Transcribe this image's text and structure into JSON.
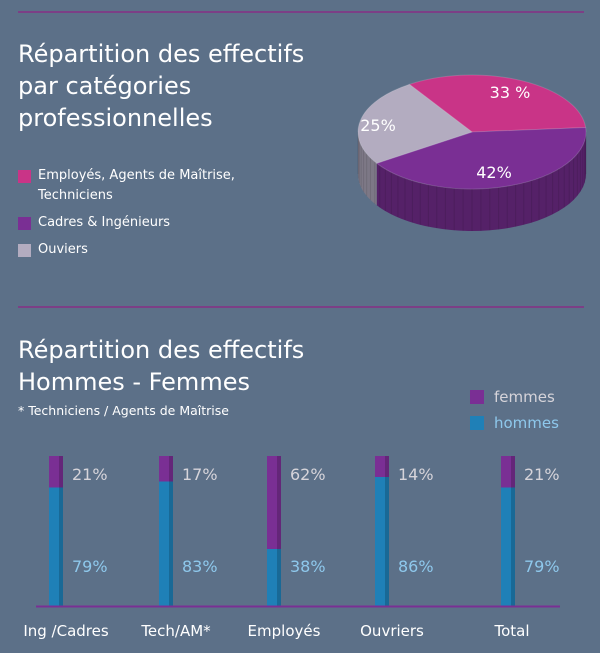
{
  "colors": {
    "background": "#5c7088",
    "rule": "#7c3f86",
    "pink": "#c93487",
    "purple": "#7a2f94",
    "grey": "#b3acc0",
    "femmes": "#7a2f94",
    "hommes": "#1f80b7",
    "hommes_label": "#8ec8ec",
    "femmes_label": "#d6d4da"
  },
  "section1": {
    "title_lines": [
      "Répartition des effectifs",
      "par catégories",
      "professionnelles"
    ],
    "legend": [
      {
        "label_lines": [
          "Employés, Agents de Maîtrise,",
          "Techniciens"
        ],
        "color": "#c93487"
      },
      {
        "label_lines": [
          "Cadres & Ingénieurs"
        ],
        "color": "#7a2f94"
      },
      {
        "label_lines": [
          "Ouviers"
        ],
        "color": "#b3acc0"
      }
    ]
  },
  "section2": {
    "title_lines": [
      "Répartition des effectifs",
      "Hommes - Femmes"
    ],
    "note": "* Techniciens / Agents de Maîtrise",
    "legend": [
      {
        "label": "femmes",
        "color": "#7a2f94"
      },
      {
        "label": "hommes",
        "color": "#1f80b7"
      }
    ]
  },
  "chart_data": [
    {
      "type": "pie",
      "slices": [
        {
          "label": "33 %",
          "value": 33,
          "category": "Employés, Agents de Maîtrise, Techniciens",
          "color": "#c93487"
        },
        {
          "label": "42%",
          "value": 42,
          "category": "Cadres & Ingénieurs",
          "color": "#7a2f94"
        },
        {
          "label": "25%",
          "value": 25,
          "category": "Ouviers",
          "color": "#b3acc0"
        }
      ]
    },
    {
      "type": "bar",
      "stacked": true,
      "categories": [
        "Ing /Cadres",
        "Tech/AM*",
        "Employés",
        "Ouvriers",
        "Total"
      ],
      "series": [
        {
          "name": "hommes",
          "values": [
            79,
            83,
            38,
            86,
            79
          ],
          "labels": [
            "79%",
            "83%",
            "38%",
            "86%",
            "79%"
          ]
        },
        {
          "name": "femmes",
          "values": [
            21,
            17,
            62,
            14,
            21
          ],
          "labels": [
            "21%",
            "17%",
            "62%",
            "14%",
            "21%"
          ]
        }
      ],
      "ylim": [
        0,
        100
      ]
    }
  ]
}
